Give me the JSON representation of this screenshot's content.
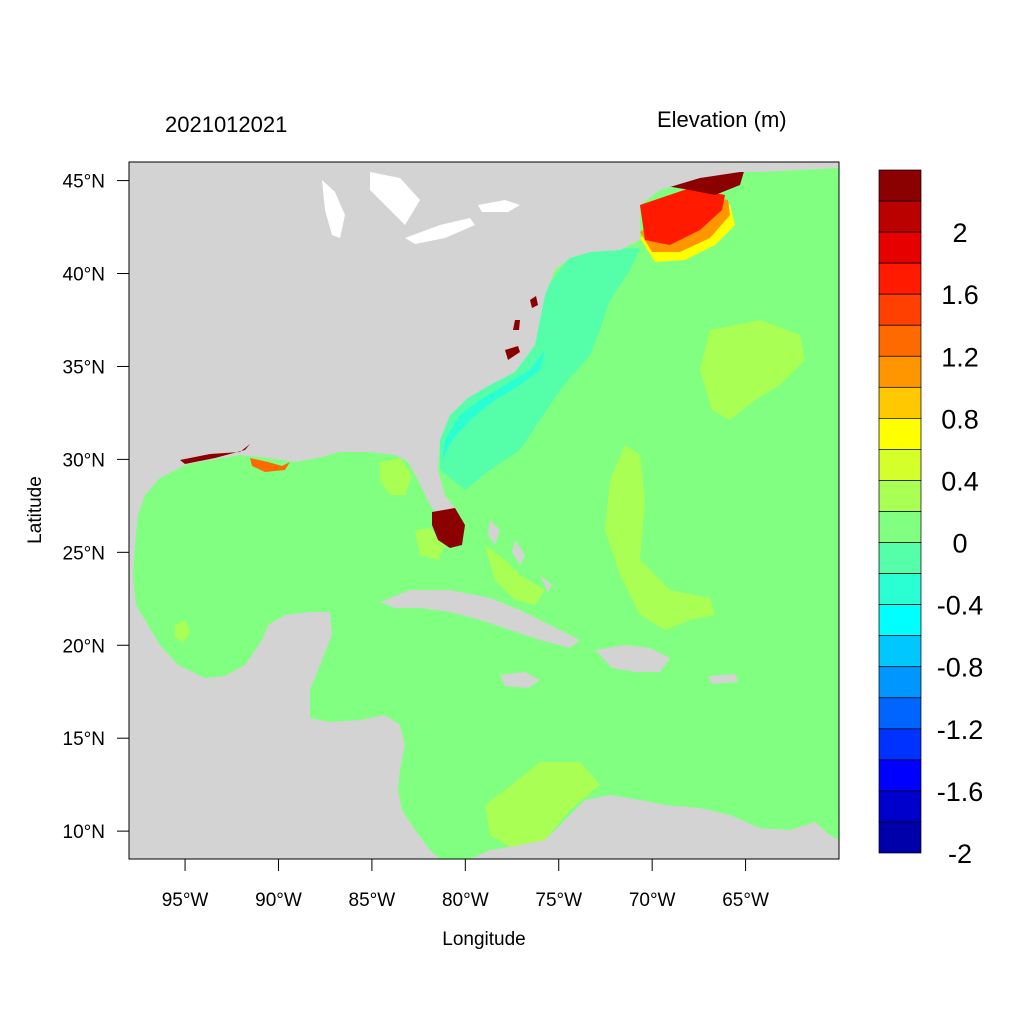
{
  "header": {
    "timestamp": "2021012021",
    "variable_title": "Elevation (m)"
  },
  "axes": {
    "xlabel": "Longitude",
    "ylabel": "Latitude",
    "lon_range": [
      -98,
      -60
    ],
    "lat_range": [
      8.5,
      46
    ],
    "x_ticks": [
      {
        "value": -95,
        "label": "95°W"
      },
      {
        "value": -90,
        "label": "90°W"
      },
      {
        "value": -85,
        "label": "85°W"
      },
      {
        "value": -80,
        "label": "80°W"
      },
      {
        "value": -75,
        "label": "75°W"
      },
      {
        "value": -70,
        "label": "70°W"
      },
      {
        "value": -65,
        "label": "65°W"
      }
    ],
    "y_ticks": [
      {
        "value": 45,
        "label": "45°N"
      },
      {
        "value": 40,
        "label": "40°N"
      },
      {
        "value": 35,
        "label": "35°N"
      },
      {
        "value": 30,
        "label": "30°N"
      },
      {
        "value": 25,
        "label": "25°N"
      },
      {
        "value": 20,
        "label": "20°N"
      },
      {
        "value": 15,
        "label": "15°N"
      },
      {
        "value": 10,
        "label": "10°N"
      }
    ]
  },
  "colorbar": {
    "levels_top_to_bottom": [
      {
        "color": "#8b0000"
      },
      {
        "color": "#bb0000",
        "label": "2"
      },
      {
        "color": "#e60000"
      },
      {
        "color": "#ff1a00",
        "label": "1.6"
      },
      {
        "color": "#ff4000"
      },
      {
        "color": "#ff6a00",
        "label": "1.2"
      },
      {
        "color": "#ff9600"
      },
      {
        "color": "#ffc800",
        "label": "0.8"
      },
      {
        "color": "#ffff00"
      },
      {
        "color": "#d4ff2a",
        "label": "0.4"
      },
      {
        "color": "#aaff55"
      },
      {
        "color": "#80ff80",
        "label": "0"
      },
      {
        "color": "#55ffaa"
      },
      {
        "color": "#2affd4",
        "label": "-0.4"
      },
      {
        "color": "#00ffff"
      },
      {
        "color": "#00c8ff",
        "label": "-0.8"
      },
      {
        "color": "#0096ff"
      },
      {
        "color": "#0064ff",
        "label": "-1.2"
      },
      {
        "color": "#0032ff"
      },
      {
        "color": "#0000ff",
        "label": "-1.6"
      },
      {
        "color": "#0000cc"
      },
      {
        "color": "#0000aa",
        "label": "-2"
      }
    ]
  },
  "colors": {
    "land": "#d3d3d3",
    "ocean_zero": "#80ff80",
    "lakes": "#ffffff"
  }
}
